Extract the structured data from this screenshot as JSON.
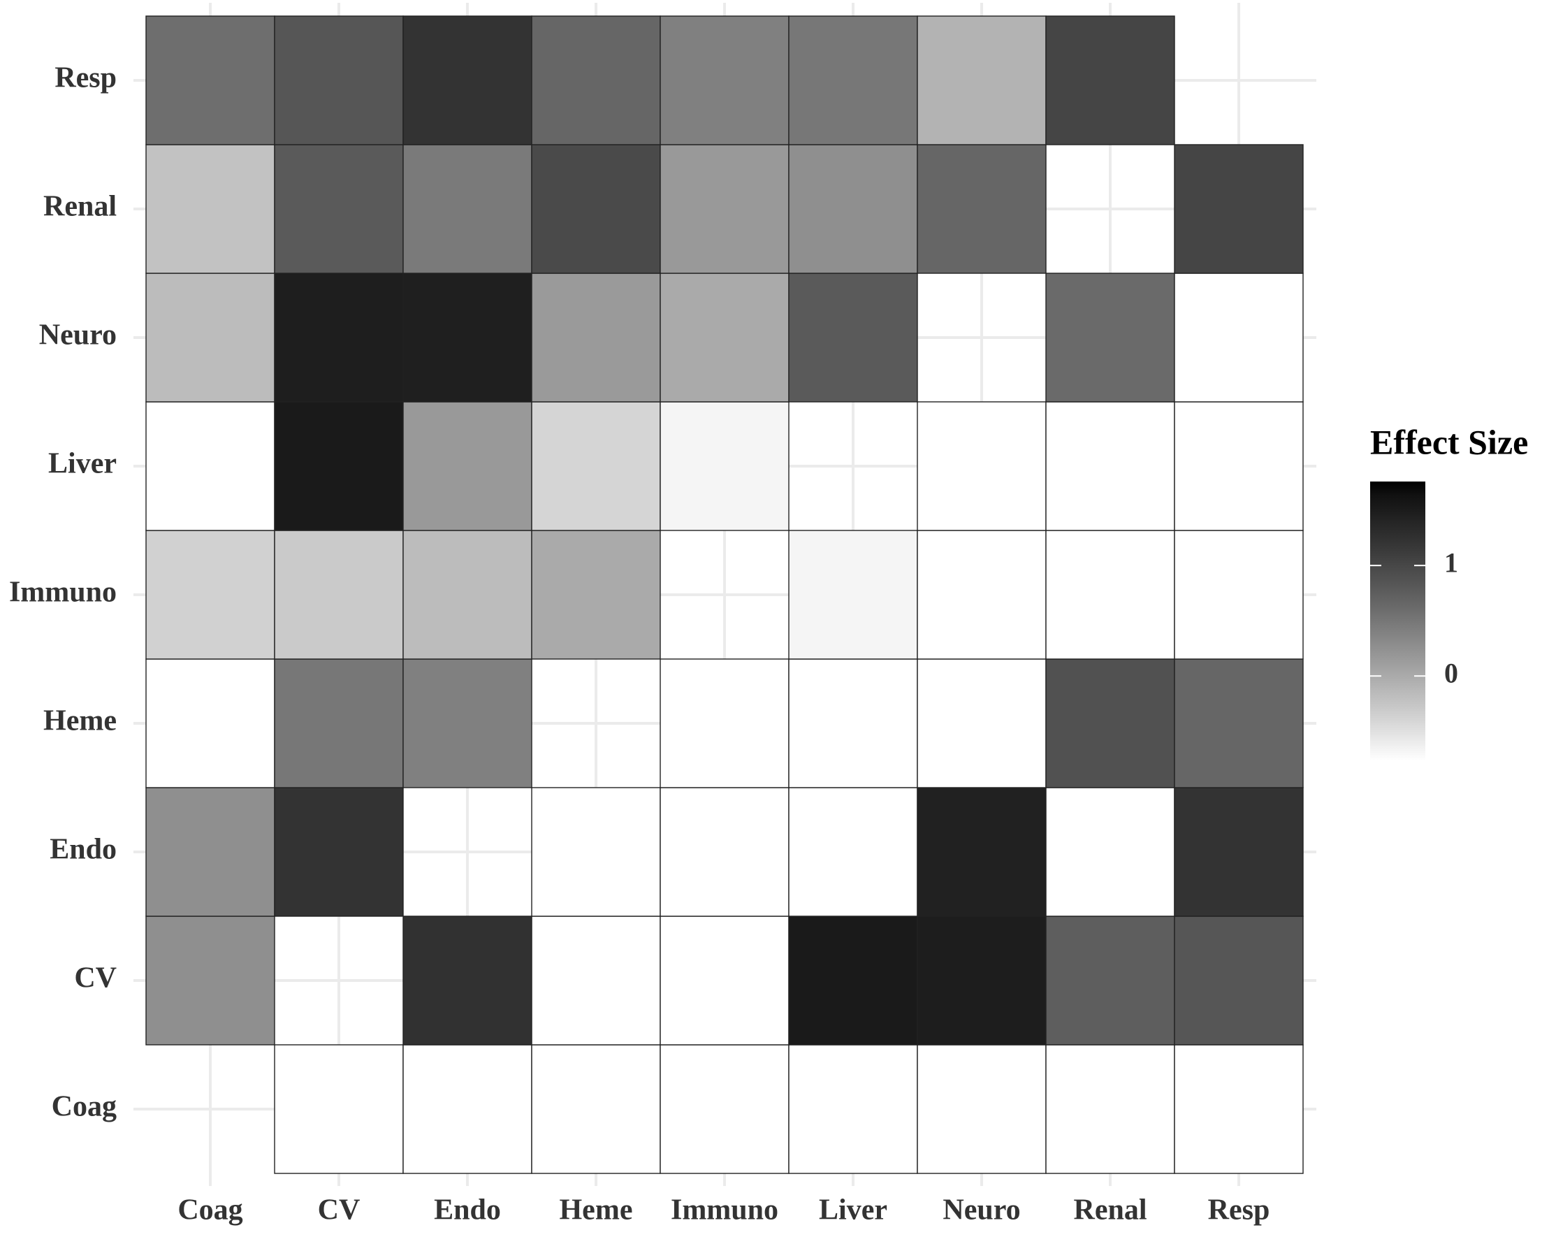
{
  "chart_data": {
    "type": "heatmap",
    "categories": [
      "Coag",
      "CV",
      "Endo",
      "Heme",
      "Immuno",
      "Liver",
      "Neuro",
      "Renal",
      "Resp"
    ],
    "y_categories": [
      "Coag",
      "CV",
      "Endo",
      "Heme",
      "Immuno",
      "Liver",
      "Neuro",
      "Renal",
      "Resp"
    ],
    "z": [
      [
        null,
        -0.77,
        -0.77,
        -0.77,
        -0.77,
        -0.77,
        -0.77,
        -0.77,
        -0.77
      ],
      [
        0.26,
        null,
        1.25,
        -0.77,
        -0.77,
        1.52,
        1.49,
        0.75,
        0.84
      ],
      [
        0.26,
        1.22,
        null,
        -0.77,
        -0.77,
        -0.77,
        1.44,
        -0.77,
        1.22
      ],
      [
        -0.77,
        0.49,
        0.4,
        null,
        -0.77,
        -0.77,
        -0.77,
        0.89,
        0.67
      ],
      [
        -0.36,
        -0.3,
        -0.17,
        0.0,
        null,
        -0.68,
        -0.77,
        -0.77,
        -0.77
      ],
      [
        -0.77,
        1.52,
        0.16,
        -0.4,
        -0.68,
        null,
        -0.77,
        -0.77,
        -0.77
      ],
      [
        -0.17,
        1.47,
        1.46,
        0.15,
        0.0,
        0.79,
        null,
        0.63,
        -0.77
      ],
      [
        -0.22,
        0.79,
        0.46,
        0.96,
        0.16,
        0.26,
        0.67,
        null,
        1.02
      ],
      [
        0.59,
        0.84,
        1.22,
        0.67,
        0.4,
        0.49,
        -0.09,
        1.02,
        null
      ]
    ],
    "legend_title": "Effect Size",
    "zlim": [
      -0.77,
      1.76
    ],
    "zticks": [
      0,
      1
    ],
    "low_color": "#ffffff",
    "high_color": "#000000",
    "grid": true
  }
}
